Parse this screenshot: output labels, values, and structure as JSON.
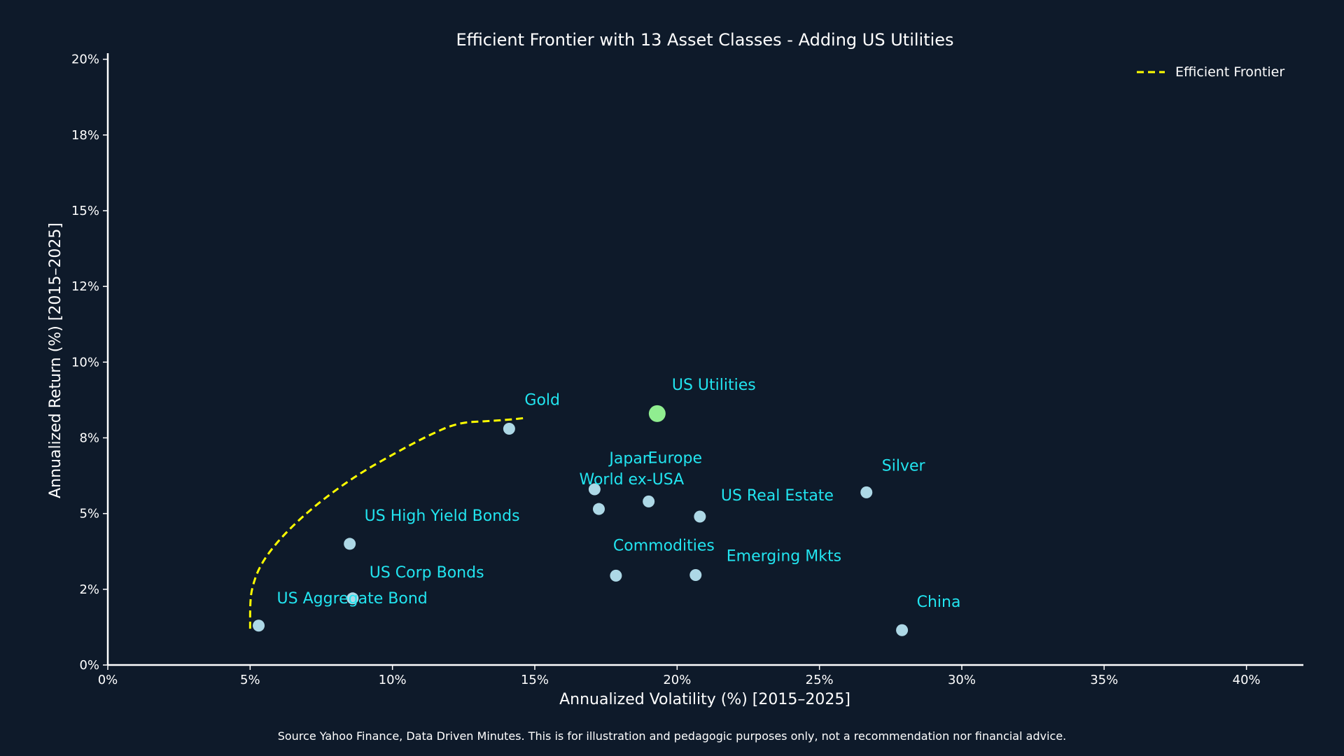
{
  "colors": {
    "background": "#0e1a2a",
    "axis": "#ffffff",
    "text": "#ffffff",
    "point": "#add8e6",
    "highlight_point": "#90ee90",
    "label": "#22e5f0",
    "frontier": "#ffff00"
  },
  "footer": {
    "source": "Source Yahoo Finance, Data Driven Minutes. This is for illustration and pedagogic purposes only, not a recommendation nor financial advice."
  },
  "chart_data": {
    "type": "scatter",
    "title": "Efficient Frontier with 13 Asset Classes - Adding US Utilities",
    "xlabel": "Annualized Volatility (%) [2015–2025]",
    "ylabel": "Annualized Return (%) [2015–2025]",
    "xlim": [
      0,
      42
    ],
    "ylim": [
      0,
      20.2
    ],
    "x_ticks": [
      0,
      5,
      10,
      15,
      20,
      25,
      30,
      35,
      40
    ],
    "x_tick_labels": [
      "0%",
      "5%",
      "10%",
      "15%",
      "20%",
      "25%",
      "30%",
      "35%",
      "40%"
    ],
    "y_ticks": [
      0,
      2.5,
      5,
      7.5,
      10,
      12.5,
      15,
      17.5,
      20
    ],
    "y_tick_labels": [
      "0%",
      "2%",
      "5%",
      "8%",
      "10%",
      "12%",
      "15%",
      "18%",
      "20%"
    ],
    "grid": false,
    "legend": {
      "position": "top-right",
      "entries": [
        {
          "label": "Efficient Frontier",
          "style": "dashed",
          "color": "#ffff00"
        }
      ]
    },
    "assets": [
      {
        "name": "US Aggregate Bond",
        "x": 5.3,
        "y": 1.3,
        "highlight": false
      },
      {
        "name": "US Corp Bonds",
        "x": 8.6,
        "y": 2.2,
        "highlight": false
      },
      {
        "name": "US High Yield Bonds",
        "x": 8.5,
        "y": 4.0,
        "highlight": false
      },
      {
        "name": "Gold",
        "x": 14.1,
        "y": 7.8,
        "highlight": false
      },
      {
        "name": "Japan",
        "x": 17.1,
        "y": 5.8,
        "highlight": false
      },
      {
        "name": "World ex-USA",
        "x": 17.25,
        "y": 5.15,
        "highlight": false
      },
      {
        "name": "US Utilities",
        "x": 19.3,
        "y": 8.3,
        "highlight": true
      },
      {
        "name": "Europe",
        "x": 19.0,
        "y": 5.4,
        "highlight": false
      },
      {
        "name": "US Real Estate",
        "x": 20.8,
        "y": 4.9,
        "highlight": false
      },
      {
        "name": "Commodities",
        "x": 17.85,
        "y": 2.95,
        "highlight": false
      },
      {
        "name": "Emerging Mkts",
        "x": 20.65,
        "y": 2.97,
        "highlight": false
      },
      {
        "name": "Silver",
        "x": 26.65,
        "y": 5.7,
        "highlight": false
      },
      {
        "name": "China",
        "x": 27.9,
        "y": 1.15,
        "highlight": false
      }
    ],
    "frontier": {
      "name": "Efficient Frontier",
      "x": [
        5.0,
        5.0,
        5.05,
        5.3,
        5.8,
        6.6,
        7.6,
        8.8,
        10.1,
        11.3,
        12.3,
        13.3,
        14.1,
        14.6
      ],
      "y": [
        1.2,
        2.0,
        2.5,
        3.2,
        3.9,
        4.7,
        5.5,
        6.3,
        7.0,
        7.6,
        8.0,
        8.05,
        8.1,
        8.15
      ]
    }
  }
}
